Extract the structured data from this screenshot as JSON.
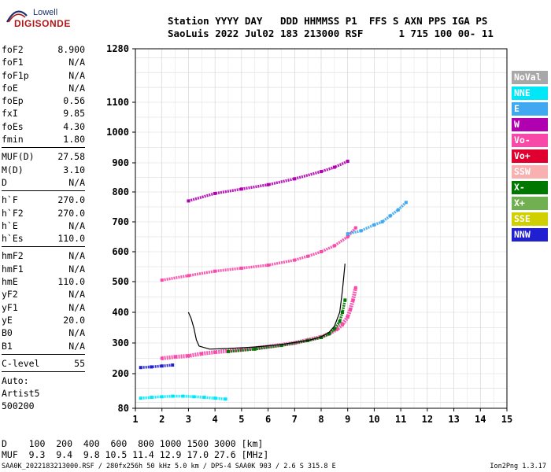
{
  "logo": {
    "line1": "Lowell",
    "line2": "DIGISONDE"
  },
  "header": {
    "line1": "Station YYYY DAY   DDD HHMMSS P1  FFS S AXN PPS IGA PS",
    "line2": "SaoLuis 2022 Jul02 183 213000 RSF      1 715 100 00- 11"
  },
  "params": {
    "group1": [
      {
        "key": "foF2",
        "value": "8.900"
      },
      {
        "key": "foF1",
        "value": "N/A"
      },
      {
        "key": "foF1p",
        "value": "N/A"
      },
      {
        "key": "foE",
        "value": "N/A"
      },
      {
        "key": "foEp",
        "value": "0.56"
      },
      {
        "key": "fxI",
        "value": "9.85"
      },
      {
        "key": "foEs",
        "value": "4.30"
      },
      {
        "key": "fmin",
        "value": "1.80"
      }
    ],
    "group2": [
      {
        "key": "MUF(D)",
        "value": "27.58"
      },
      {
        "key": "M(D)",
        "value": "3.10"
      },
      {
        "key": "D",
        "value": "N/A"
      }
    ],
    "group3": [
      {
        "key": "h`F",
        "value": "270.0"
      },
      {
        "key": "h`F2",
        "value": "270.0"
      },
      {
        "key": "h`E",
        "value": "N/A"
      },
      {
        "key": "h`Es",
        "value": "110.0"
      }
    ],
    "group4": [
      {
        "key": "hmF2",
        "value": "N/A"
      },
      {
        "key": "hmF1",
        "value": "N/A"
      },
      {
        "key": "hmE",
        "value": "110.0"
      },
      {
        "key": "yF2",
        "value": "N/A"
      },
      {
        "key": "yF1",
        "value": "N/A"
      },
      {
        "key": "yE",
        "value": "20.0"
      },
      {
        "key": "B0",
        "value": "N/A"
      },
      {
        "key": "B1",
        "value": "N/A"
      }
    ],
    "group5": [
      {
        "key": "C-level",
        "value": "55"
      }
    ],
    "auto": [
      "Auto:",
      "Artist5",
      "500200"
    ]
  },
  "legend": [
    {
      "label": "NoVal",
      "color": "#a8a8a8"
    },
    {
      "label": "NNE",
      "color": "#00e8f8"
    },
    {
      "label": "E",
      "color": "#40a8f0"
    },
    {
      "label": "W",
      "color": "#b000b0"
    },
    {
      "label": "Vo-",
      "color": "#f848a8"
    },
    {
      "label": "Vo+",
      "color": "#e00030"
    },
    {
      "label": "SSW",
      "color": "#f8b0b0"
    },
    {
      "label": "X-",
      "color": "#007800"
    },
    {
      "label": "X+",
      "color": "#70b050"
    },
    {
      "label": "SSE",
      "color": "#d0d000"
    },
    {
      "label": "NNW",
      "color": "#2020d0"
    }
  ],
  "footer": {
    "line1": "D    100  200  400  600  800 1000 1500 3000 [km]",
    "line2": "MUF  9.3  9.4  9.8 10.5 11.4 12.9 17.0 27.6 [MHz]"
  },
  "bottom_line": "SAA0K_2022183213000.RSF / 280fx256h 50 kHz 5.0 km / DPS-4 SAA0K 903 / 2.6 S 315.8 E",
  "version": "Ion2Png 1.3.17",
  "chart_data": {
    "type": "scatter",
    "x_ticks": [
      1,
      2,
      3,
      4,
      5,
      6,
      7,
      8,
      9,
      10,
      11,
      12,
      13,
      14,
      15
    ],
    "y_ticks": [
      80,
      200,
      300,
      400,
      500,
      600,
      700,
      800,
      900,
      1000,
      1100,
      1280
    ],
    "xlim": [
      1,
      15
    ],
    "ylim": [
      80,
      1280
    ],
    "grid": true,
    "legend_position": "right",
    "series": [
      {
        "trace": "o-trace",
        "color": "#f848a8",
        "x": [
          2.0,
          2.5,
          3.0,
          3.5,
          4.0,
          5.0,
          6.0,
          7.0,
          7.5,
          8.0,
          8.3,
          8.6,
          8.8,
          9.0,
          9.1,
          9.2,
          9.3
        ],
        "y": [
          250,
          255,
          258,
          265,
          270,
          278,
          288,
          300,
          310,
          320,
          330,
          345,
          360,
          385,
          410,
          440,
          480
        ]
      },
      {
        "trace": "x-trace",
        "color": "#007800",
        "x": [
          4.5,
          5.5,
          6.5,
          7.5,
          8.0,
          8.3,
          8.5,
          8.7,
          8.8,
          8.9
        ],
        "y": [
          272,
          280,
          292,
          308,
          318,
          330,
          345,
          370,
          400,
          440
        ]
      },
      {
        "trace": "second-hop",
        "color": "#f848a8",
        "x": [
          2.0,
          3.0,
          4.0,
          5.0,
          6.0,
          7.0,
          7.5,
          8.0,
          8.5,
          9.0,
          9.3
        ],
        "y": [
          505,
          520,
          535,
          545,
          555,
          572,
          585,
          600,
          620,
          650,
          680
        ]
      },
      {
        "trace": "third-hop",
        "color": "#b000b0",
        "x": [
          3.0,
          4.0,
          5.0,
          6.0,
          7.0,
          8.0,
          8.5,
          9.0
        ],
        "y": [
          770,
          795,
          810,
          825,
          845,
          870,
          885,
          905
        ]
      },
      {
        "trace": "high-freq-trace",
        "color": "#40a8f0",
        "x": [
          9.0,
          9.5,
          10.0,
          10.3,
          10.6,
          10.9,
          11.2
        ],
        "y": [
          660,
          670,
          690,
          700,
          720,
          740,
          765
        ]
      },
      {
        "trace": "es-layer",
        "color": "#00e8f8",
        "x": [
          1.2,
          1.6,
          2.0,
          2.4,
          2.8,
          3.2,
          3.6,
          4.0,
          4.4
        ],
        "y": [
          115,
          118,
          120,
          122,
          122,
          120,
          118,
          115,
          112
        ]
      },
      {
        "trace": "es-second-hop",
        "color": "#2020d0",
        "x": [
          1.2,
          1.6,
          2.0,
          2.4
        ],
        "y": [
          220,
          222,
          225,
          228
        ]
      },
      {
        "trace": "model-profile",
        "color": "#000000",
        "x": [
          3.0,
          3.1,
          3.2,
          3.3,
          3.4,
          3.8,
          4.5,
          5.5,
          6.5,
          7.5,
          8.0,
          8.3,
          8.5,
          8.7,
          8.8,
          8.9
        ],
        "y": [
          400,
          380,
          350,
          310,
          290,
          280,
          282,
          287,
          295,
          308,
          320,
          335,
          355,
          400,
          470,
          560
        ]
      }
    ]
  }
}
